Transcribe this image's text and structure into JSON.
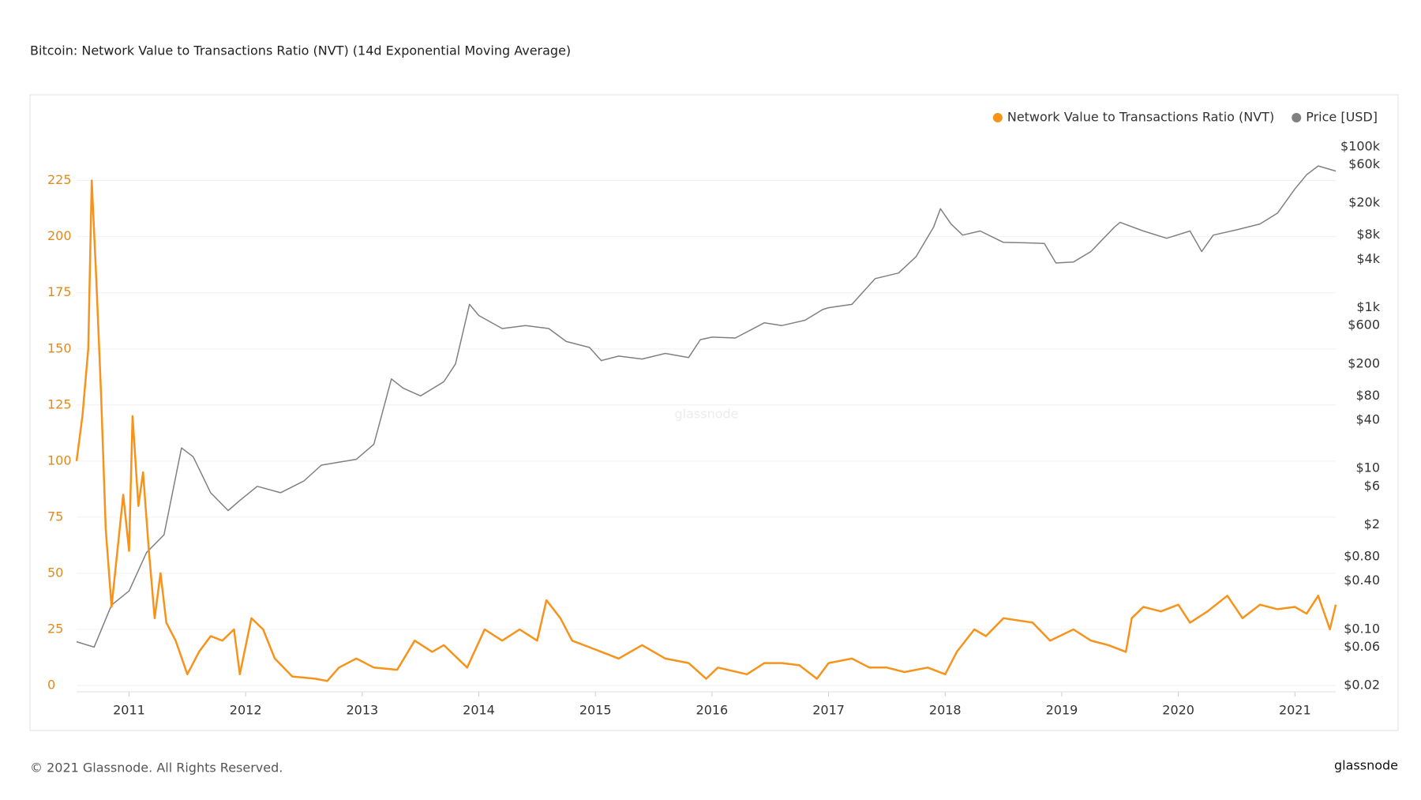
{
  "chart_data": {
    "type": "line",
    "title": "Bitcoin: Network Value to Transactions Ratio (NVT) (14d Exponential Moving Average)",
    "watermark": "glassnode",
    "footer": "© 2021 Glassnode. All Rights Reserved.",
    "logo": "glassnode",
    "xlim": [
      2010.55,
      2021.35
    ],
    "xticks": [
      2011,
      2012,
      2013,
      2014,
      2015,
      2016,
      2017,
      2018,
      2019,
      2020,
      2021
    ],
    "ylim": [
      0,
      240
    ],
    "yticks": [
      0,
      25,
      50,
      75,
      100,
      125,
      150,
      175,
      200,
      225
    ],
    "y2lim": [
      0.02,
      100000
    ],
    "y2log": true,
    "y2ticks": [
      {
        "value": 0.02,
        "label": "$0.02"
      },
      {
        "value": 0.06,
        "label": "$0.06"
      },
      {
        "value": 0.1,
        "label": "$0.10"
      },
      {
        "value": 0.4,
        "label": "$0.40"
      },
      {
        "value": 0.8,
        "label": "$0.80"
      },
      {
        "value": 2,
        "label": "$2"
      },
      {
        "value": 6,
        "label": "$6"
      },
      {
        "value": 10,
        "label": "$10"
      },
      {
        "value": 40,
        "label": "$40"
      },
      {
        "value": 80,
        "label": "$80"
      },
      {
        "value": 200,
        "label": "$200"
      },
      {
        "value": 600,
        "label": "$600"
      },
      {
        "value": 1000,
        "label": "$1k"
      },
      {
        "value": 4000,
        "label": "$4k"
      },
      {
        "value": 8000,
        "label": "$8k"
      },
      {
        "value": 20000,
        "label": "$20k"
      },
      {
        "value": 60000,
        "label": "$60k"
      },
      {
        "value": 100000,
        "label": "$100k"
      }
    ],
    "grid": true,
    "legend": "top-right",
    "series": [
      {
        "name": "Network Value to Transactions Ratio (NVT)",
        "color": "#f7931a",
        "x": [
          2010.55,
          2010.6,
          2010.65,
          2010.68,
          2010.72,
          2010.76,
          2010.8,
          2010.85,
          2010.9,
          2010.95,
          2011.0,
          2011.03,
          2011.08,
          2011.12,
          2011.17,
          2011.22,
          2011.27,
          2011.32,
          2011.4,
          2011.5,
          2011.6,
          2011.7,
          2011.8,
          2011.9,
          2011.95,
          2012.05,
          2012.15,
          2012.25,
          2012.4,
          2012.6,
          2012.7,
          2012.8,
          2012.95,
          2013.1,
          2013.3,
          2013.45,
          2013.6,
          2013.7,
          2013.9,
          2014.05,
          2014.2,
          2014.35,
          2014.5,
          2014.58,
          2014.7,
          2014.8,
          2015.0,
          2015.2,
          2015.4,
          2015.6,
          2015.8,
          2015.95,
          2016.05,
          2016.3,
          2016.45,
          2016.6,
          2016.75,
          2016.9,
          2017.0,
          2017.2,
          2017.35,
          2017.5,
          2017.65,
          2017.85,
          2018.0,
          2018.1,
          2018.25,
          2018.35,
          2018.5,
          2018.75,
          2018.9,
          2019.1,
          2019.25,
          2019.4,
          2019.55,
          2019.6,
          2019.7,
          2019.85,
          2020.0,
          2020.1,
          2020.25,
          2020.42,
          2020.55,
          2020.7,
          2020.85,
          2021.0,
          2021.1,
          2021.2,
          2021.3,
          2021.35
        ],
        "values": [
          100,
          120,
          150,
          225,
          180,
          130,
          70,
          35,
          60,
          85,
          60,
          120,
          80,
          95,
          60,
          30,
          50,
          28,
          20,
          5,
          15,
          22,
          20,
          25,
          5,
          30,
          25,
          12,
          4,
          3,
          2,
          8,
          12,
          8,
          7,
          20,
          15,
          18,
          8,
          25,
          20,
          25,
          20,
          38,
          30,
          20,
          16,
          12,
          18,
          12,
          10,
          3,
          8,
          5,
          10,
          10,
          9,
          3,
          10,
          12,
          8,
          8,
          6,
          8,
          5,
          15,
          25,
          22,
          30,
          28,
          20,
          25,
          20,
          18,
          15,
          30,
          35,
          33,
          36,
          28,
          33,
          40,
          30,
          36,
          34,
          35,
          32,
          40,
          25,
          36
        ]
      },
      {
        "name": "Price [USD]",
        "color": "#808080",
        "axis": "y2",
        "x": [
          2010.55,
          2010.7,
          2010.85,
          2011.0,
          2011.15,
          2011.3,
          2011.45,
          2011.55,
          2011.7,
          2011.85,
          2011.95,
          2012.1,
          2012.3,
          2012.5,
          2012.65,
          2012.8,
          2012.95,
          2013.1,
          2013.25,
          2013.35,
          2013.5,
          2013.7,
          2013.8,
          2013.92,
          2014.0,
          2014.2,
          2014.4,
          2014.6,
          2014.75,
          2014.95,
          2015.05,
          2015.2,
          2015.4,
          2015.6,
          2015.8,
          2015.9,
          2016.0,
          2016.2,
          2016.45,
          2016.6,
          2016.8,
          2016.95,
          2017.0,
          2017.2,
          2017.4,
          2017.6,
          2017.75,
          2017.9,
          2017.96,
          2018.05,
          2018.15,
          2018.3,
          2018.5,
          2018.7,
          2018.85,
          2018.95,
          2019.1,
          2019.25,
          2019.45,
          2019.5,
          2019.7,
          2019.9,
          2020.1,
          2020.2,
          2020.3,
          2020.5,
          2020.7,
          2020.85,
          2021.0,
          2021.1,
          2021.2,
          2021.35
        ],
        "values": [
          0.07,
          0.06,
          0.2,
          0.3,
          0.9,
          1.5,
          18,
          14,
          5,
          3,
          4,
          6,
          5,
          7,
          11,
          12,
          13,
          20,
          130,
          100,
          80,
          120,
          200,
          1100,
          800,
          550,
          600,
          550,
          380,
          320,
          220,
          250,
          230,
          270,
          240,
          400,
          430,
          420,
          650,
          600,
          700,
          950,
          1000,
          1100,
          2300,
          2700,
          4300,
          10000,
          17000,
          11000,
          8000,
          9000,
          6500,
          6400,
          6300,
          3600,
          3700,
          5000,
          10000,
          11500,
          9000,
          7300,
          9000,
          5000,
          8000,
          9300,
          11000,
          15000,
          30000,
          45000,
          58000,
          50000
        ]
      }
    ]
  }
}
